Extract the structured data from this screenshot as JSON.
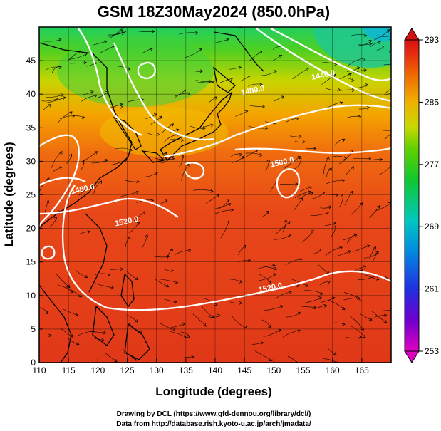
{
  "title": "GSM 18Z30May2024 (850.0hPa)",
  "x_axis": {
    "label": "Longitude (degrees)",
    "range": [
      110,
      170
    ],
    "ticks": [
      110,
      115,
      120,
      125,
      130,
      135,
      140,
      145,
      150,
      155,
      160,
      165
    ]
  },
  "y_axis": {
    "label": "Latitude  (degrees)",
    "range": [
      0,
      50
    ],
    "ticks": [
      0,
      5,
      10,
      15,
      20,
      25,
      30,
      35,
      40,
      45
    ]
  },
  "colorbar": {
    "range": [
      253,
      293
    ],
    "ticks": [
      253,
      261,
      269,
      277,
      285,
      293
    ],
    "colors": [
      "#e000c0",
      "#7000d0",
      "#2030e0",
      "#0090e0",
      "#00c8c0",
      "#10c830",
      "#60d000",
      "#c8d800",
      "#f0b000",
      "#f07000",
      "#e83010",
      "#d81010"
    ]
  },
  "contour_labels": [
    {
      "text": "1440.0",
      "lon": 158.5,
      "lat": 42.5
    },
    {
      "text": "1480.0",
      "lon": 146.5,
      "lat": 40.2
    },
    {
      "text": "1480.0",
      "lon": 117.5,
      "lat": 25.5
    },
    {
      "text": "1500.0",
      "lon": 151.5,
      "lat": 29.5
    },
    {
      "text": "1520.0",
      "lon": 125.0,
      "lat": 20.7
    },
    {
      "text": "1520.0",
      "lon": 149.5,
      "lat": 10.8
    }
  ],
  "credits": {
    "line1": "Drawing by DCL (https://www.gfd-dennou.org/library/dcl/)",
    "line2": "Data from http://database.rish.kyoto-u.ac.jp/arch/jmadata/"
  }
}
